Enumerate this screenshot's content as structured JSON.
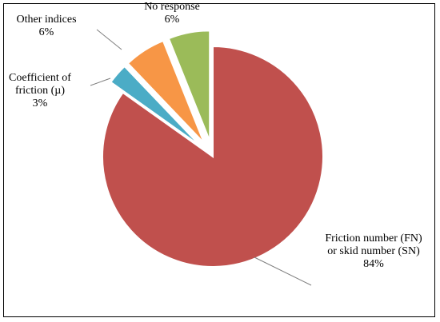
{
  "chart_data": {
    "type": "pie",
    "title": "",
    "slices": [
      {
        "label_lines": [
          "Friction number (FN)",
          "or skid number (SN)"
        ],
        "value_label": "84%",
        "value": 84,
        "color": "#c0504d"
      },
      {
        "label_lines": [
          "Coefficient of",
          "friction (µ)"
        ],
        "value_label": "3%",
        "value": 3,
        "color": "#4bacc6"
      },
      {
        "label_lines": [
          "Other indices"
        ],
        "value_label": "6%",
        "value": 6,
        "color": "#f79646"
      },
      {
        "label_lines": [
          "No response"
        ],
        "value_label": "6%",
        "value": 6,
        "color": "#9bbb59"
      }
    ],
    "exploded": true,
    "legend": "none"
  }
}
